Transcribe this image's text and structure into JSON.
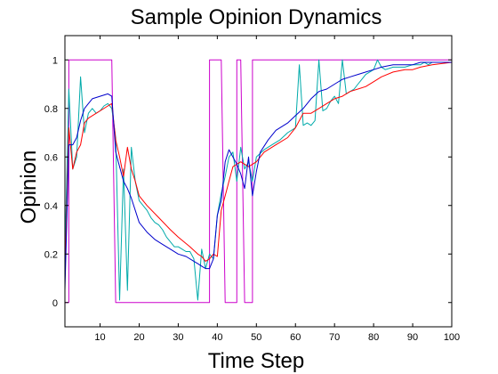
{
  "chart_data": {
    "type": "line",
    "title": "Sample Opinion Dynamics",
    "xlabel": "Time Step",
    "ylabel": "Opinion",
    "xlim": [
      1,
      100
    ],
    "ylim": [
      -0.1,
      1.1
    ],
    "xticks": [
      10,
      20,
      30,
      40,
      50,
      60,
      70,
      80,
      90,
      100
    ],
    "yticks": [
      0,
      0.2,
      0.4,
      0.6,
      0.8,
      1
    ],
    "grid": false,
    "legend": "none",
    "series": [
      {
        "color": "#cc00cc",
        "x": [
          1,
          2,
          2,
          13,
          14,
          14,
          37,
          38,
          38,
          41,
          42,
          42,
          44,
          45,
          45,
          46,
          47,
          47,
          48,
          49,
          49,
          50,
          51,
          51,
          100
        ],
        "y": [
          0,
          0,
          1,
          1,
          0,
          0,
          0,
          0,
          1,
          1,
          0,
          0,
          0,
          0,
          1,
          1,
          0,
          0,
          0,
          0,
          1,
          1,
          1,
          1,
          1
        ]
      },
      {
        "color": "#00aaaa",
        "x": [
          1,
          2,
          3,
          4,
          5,
          6,
          7,
          8,
          9,
          10,
          11,
          12,
          13,
          14,
          15,
          16,
          17,
          18,
          19,
          20,
          21,
          22,
          23,
          24,
          25,
          26,
          27,
          28,
          29,
          30,
          31,
          32,
          33,
          34,
          35,
          36,
          37,
          38,
          39,
          40,
          41,
          42,
          43,
          44,
          45,
          46,
          47,
          48,
          49,
          50,
          52,
          54,
          56,
          58,
          60,
          61,
          62,
          63,
          64,
          65,
          66,
          67,
          68,
          69,
          70,
          71,
          72,
          73,
          74,
          75,
          76,
          77,
          78,
          79,
          80,
          81,
          82,
          83,
          85,
          88,
          90,
          92,
          93,
          94,
          95,
          97,
          98,
          100
        ],
        "y": [
          0.2,
          0.88,
          0.55,
          0.6,
          0.93,
          0.7,
          0.78,
          0.8,
          0.78,
          0.79,
          0.81,
          0.82,
          0.8,
          0.68,
          0.01,
          0.55,
          0.05,
          0.64,
          0.5,
          0.42,
          0.4,
          0.38,
          0.35,
          0.33,
          0.32,
          0.3,
          0.27,
          0.25,
          0.23,
          0.23,
          0.22,
          0.21,
          0.21,
          0.18,
          0.01,
          0.22,
          0.14,
          0.2,
          0.18,
          0.36,
          0.45,
          0.52,
          0.6,
          0.62,
          0.5,
          0.64,
          0.55,
          0.58,
          0.5,
          0.6,
          0.63,
          0.65,
          0.67,
          0.7,
          0.72,
          0.98,
          0.73,
          0.74,
          0.73,
          0.75,
          1.0,
          0.79,
          0.8,
          0.83,
          0.85,
          0.82,
          1.0,
          0.86,
          0.87,
          0.88,
          0.9,
          0.92,
          0.94,
          0.95,
          0.96,
          1.0,
          0.97,
          0.96,
          0.97,
          0.97,
          0.98,
          0.98,
          0.99,
          0.98,
          0.99,
          0.99,
          0.99,
          0.99
        ]
      },
      {
        "color": "#ff0000",
        "x": [
          1,
          2,
          3,
          4,
          5,
          6,
          7,
          8,
          10,
          12,
          13,
          14,
          15,
          16,
          17,
          18,
          19,
          20,
          22,
          25,
          28,
          30,
          33,
          35,
          36,
          37,
          38,
          39,
          40,
          41,
          42,
          43,
          44,
          46,
          48,
          50,
          52,
          55,
          58,
          60,
          62,
          64,
          66,
          68,
          70,
          72,
          74,
          76,
          78,
          80,
          82,
          85,
          88,
          90,
          92,
          95,
          100
        ],
        "y": [
          0.1,
          0.72,
          0.55,
          0.62,
          0.65,
          0.74,
          0.76,
          0.77,
          0.79,
          0.81,
          0.82,
          0.67,
          0.6,
          0.52,
          0.64,
          0.55,
          0.5,
          0.44,
          0.4,
          0.35,
          0.3,
          0.27,
          0.23,
          0.2,
          0.19,
          0.17,
          0.18,
          0.2,
          0.19,
          0.38,
          0.44,
          0.5,
          0.56,
          0.58,
          0.56,
          0.58,
          0.62,
          0.65,
          0.68,
          0.72,
          0.78,
          0.78,
          0.8,
          0.82,
          0.84,
          0.85,
          0.87,
          0.88,
          0.89,
          0.91,
          0.93,
          0.95,
          0.96,
          0.96,
          0.97,
          0.98,
          0.99
        ]
      },
      {
        "color": "#0000cc",
        "x": [
          1,
          2,
          3,
          4,
          5,
          6,
          7,
          8,
          10,
          12,
          13,
          14,
          15,
          16,
          17,
          18,
          19,
          20,
          22,
          24,
          26,
          28,
          30,
          32,
          34,
          35,
          36,
          37,
          38,
          39,
          40,
          41,
          42,
          43,
          44,
          45,
          46,
          47,
          48,
          49,
          50,
          51,
          53,
          55,
          58,
          60,
          62,
          64,
          66,
          68,
          70,
          72,
          74,
          76,
          78,
          80,
          82,
          85,
          88,
          90,
          92,
          95,
          100
        ],
        "y": [
          0.05,
          0.65,
          0.65,
          0.68,
          0.75,
          0.8,
          0.82,
          0.84,
          0.85,
          0.86,
          0.85,
          0.62,
          0.56,
          0.5,
          0.47,
          0.43,
          0.38,
          0.33,
          0.29,
          0.26,
          0.24,
          0.22,
          0.2,
          0.19,
          0.17,
          0.16,
          0.15,
          0.14,
          0.14,
          0.18,
          0.36,
          0.42,
          0.58,
          0.63,
          0.6,
          0.57,
          0.53,
          0.47,
          0.6,
          0.44,
          0.54,
          0.62,
          0.67,
          0.71,
          0.74,
          0.77,
          0.8,
          0.84,
          0.87,
          0.88,
          0.9,
          0.92,
          0.93,
          0.94,
          0.95,
          0.96,
          0.97,
          0.98,
          0.98,
          0.98,
          0.99,
          0.99,
          0.99
        ]
      }
    ]
  }
}
